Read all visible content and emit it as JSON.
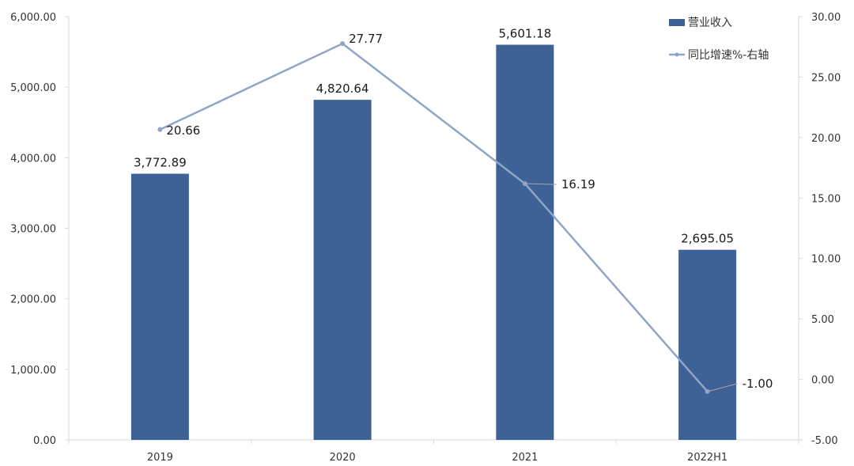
{
  "chart_data": {
    "type": "bar",
    "categories": [
      "2019",
      "2020",
      "2021",
      "2022H1"
    ],
    "series": [
      {
        "name": "营业收入",
        "type": "bar",
        "axis": "left",
        "values": [
          3772.89,
          4820.64,
          5601.18,
          2695.05
        ],
        "labels": [
          "3,772.89",
          "4,820.64",
          "5,601.18",
          "2,695.05"
        ],
        "color": "#3e6196"
      },
      {
        "name": "同比增速%-右轴",
        "type": "line",
        "axis": "right",
        "values": [
          20.66,
          27.77,
          16.19,
          -1.0
        ],
        "labels": [
          "20.66",
          "27.77",
          "16.19",
          "-1.00"
        ],
        "color": "#8fa5c8"
      }
    ],
    "left_axis": {
      "ylim": [
        0,
        6000
      ],
      "ticks": [
        0,
        1000,
        2000,
        3000,
        4000,
        5000,
        6000
      ],
      "tick_labels": [
        "0.00",
        "1,000.00",
        "2,000.00",
        "3,000.00",
        "4,000.00",
        "5,000.00",
        "6,000.00"
      ]
    },
    "right_axis": {
      "ylim": [
        -5,
        30
      ],
      "ticks": [
        -5,
        0,
        5,
        10,
        15,
        20,
        25,
        30
      ],
      "tick_labels": [
        "-5.00",
        "0.00",
        "5.00",
        "10.00",
        "15.00",
        "20.00",
        "25.00",
        "30.00"
      ]
    },
    "grid": false,
    "legend": "top-right"
  }
}
